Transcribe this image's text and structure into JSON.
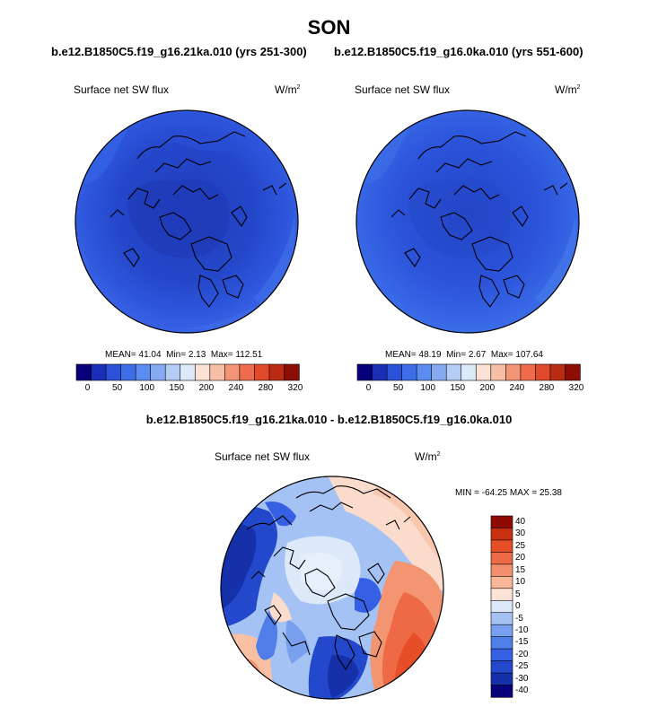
{
  "figure": {
    "season": "SON",
    "case_a": "b.e12.B1850C5.f19_g16.21ka.010 (yrs 251-300)",
    "case_b": "b.e12.B1850C5.f19_g16.0ka.010 (yrs 551-600)",
    "diff_title": "b.e12.B1850C5.f19_g16.21ka.010 - b.e12.B1850C5.f19_g16.0ka.010"
  },
  "colors": {
    "abs_scale": [
      "#08007a",
      "#1a2fb6",
      "#2b52d8",
      "#3d6ee8",
      "#5b8cf0",
      "#85aaf2",
      "#b5cdf5",
      "#dce9f8",
      "#fbe2d4",
      "#f7bfa5",
      "#f39576",
      "#ee6c4d",
      "#e04a2a",
      "#bb2a12",
      "#8c0d04"
    ],
    "diff_scale": [
      "#08007a",
      "#1530a8",
      "#2448cc",
      "#3560e4",
      "#4f7ee9",
      "#78a0ef",
      "#a5c2f4",
      "#dde9f8",
      "#fde3d6",
      "#f9b699",
      "#f38f6d",
      "#ee6a46",
      "#e64e27",
      "#c8300f",
      "#8f0b02"
    ]
  },
  "chart_data": [
    {
      "type": "heatmap",
      "name": "panel-21ka",
      "projection": "north-polar-stereographic",
      "title": "b.e12.B1850C5.f19_g16.21ka.010 (yrs 251-300)",
      "variable": "Surface net SW flux",
      "units_base": "W/m",
      "units_exp": "2",
      "stats": {
        "mean_label": "MEAN=",
        "mean": "41.04",
        "min_label": "Min=",
        "min": "2.13",
        "max_label": "Max=",
        "max": "112.51"
      },
      "colorbar": {
        "ticks": [
          "0",
          "50",
          "100",
          "150",
          "200",
          "240",
          "280",
          "320"
        ]
      }
    },
    {
      "type": "heatmap",
      "name": "panel-0ka",
      "projection": "north-polar-stereographic",
      "title": "b.e12.B1850C5.f19_g16.0ka.010 (yrs 551-600)",
      "variable": "Surface net SW flux",
      "units_base": "W/m",
      "units_exp": "2",
      "stats": {
        "mean_label": "MEAN=",
        "mean": "48.19",
        "min_label": "Min=",
        "min": "2.67",
        "max_label": "Max=",
        "max": "107.64"
      },
      "colorbar": {
        "ticks": [
          "0",
          "50",
          "100",
          "150",
          "200",
          "240",
          "280",
          "320"
        ]
      }
    },
    {
      "type": "heatmap",
      "name": "panel-difference",
      "projection": "north-polar-stereographic",
      "title": "b.e12.B1850C5.f19_g16.21ka.010 - b.e12.B1850C5.f19_g16.0ka.010",
      "variable": "Surface net SW flux",
      "units_base": "W/m",
      "units_exp": "2",
      "stats": {
        "min_label": "MIN =",
        "min": "-64.25",
        "max_label": "MAX =",
        "max": "25.38"
      },
      "colorbar": {
        "ticks": [
          "40",
          "30",
          "25",
          "20",
          "15",
          "10",
          "5",
          "0",
          "-5",
          "-10",
          "-15",
          "-20",
          "-25",
          "-30",
          "-40"
        ]
      }
    }
  ]
}
